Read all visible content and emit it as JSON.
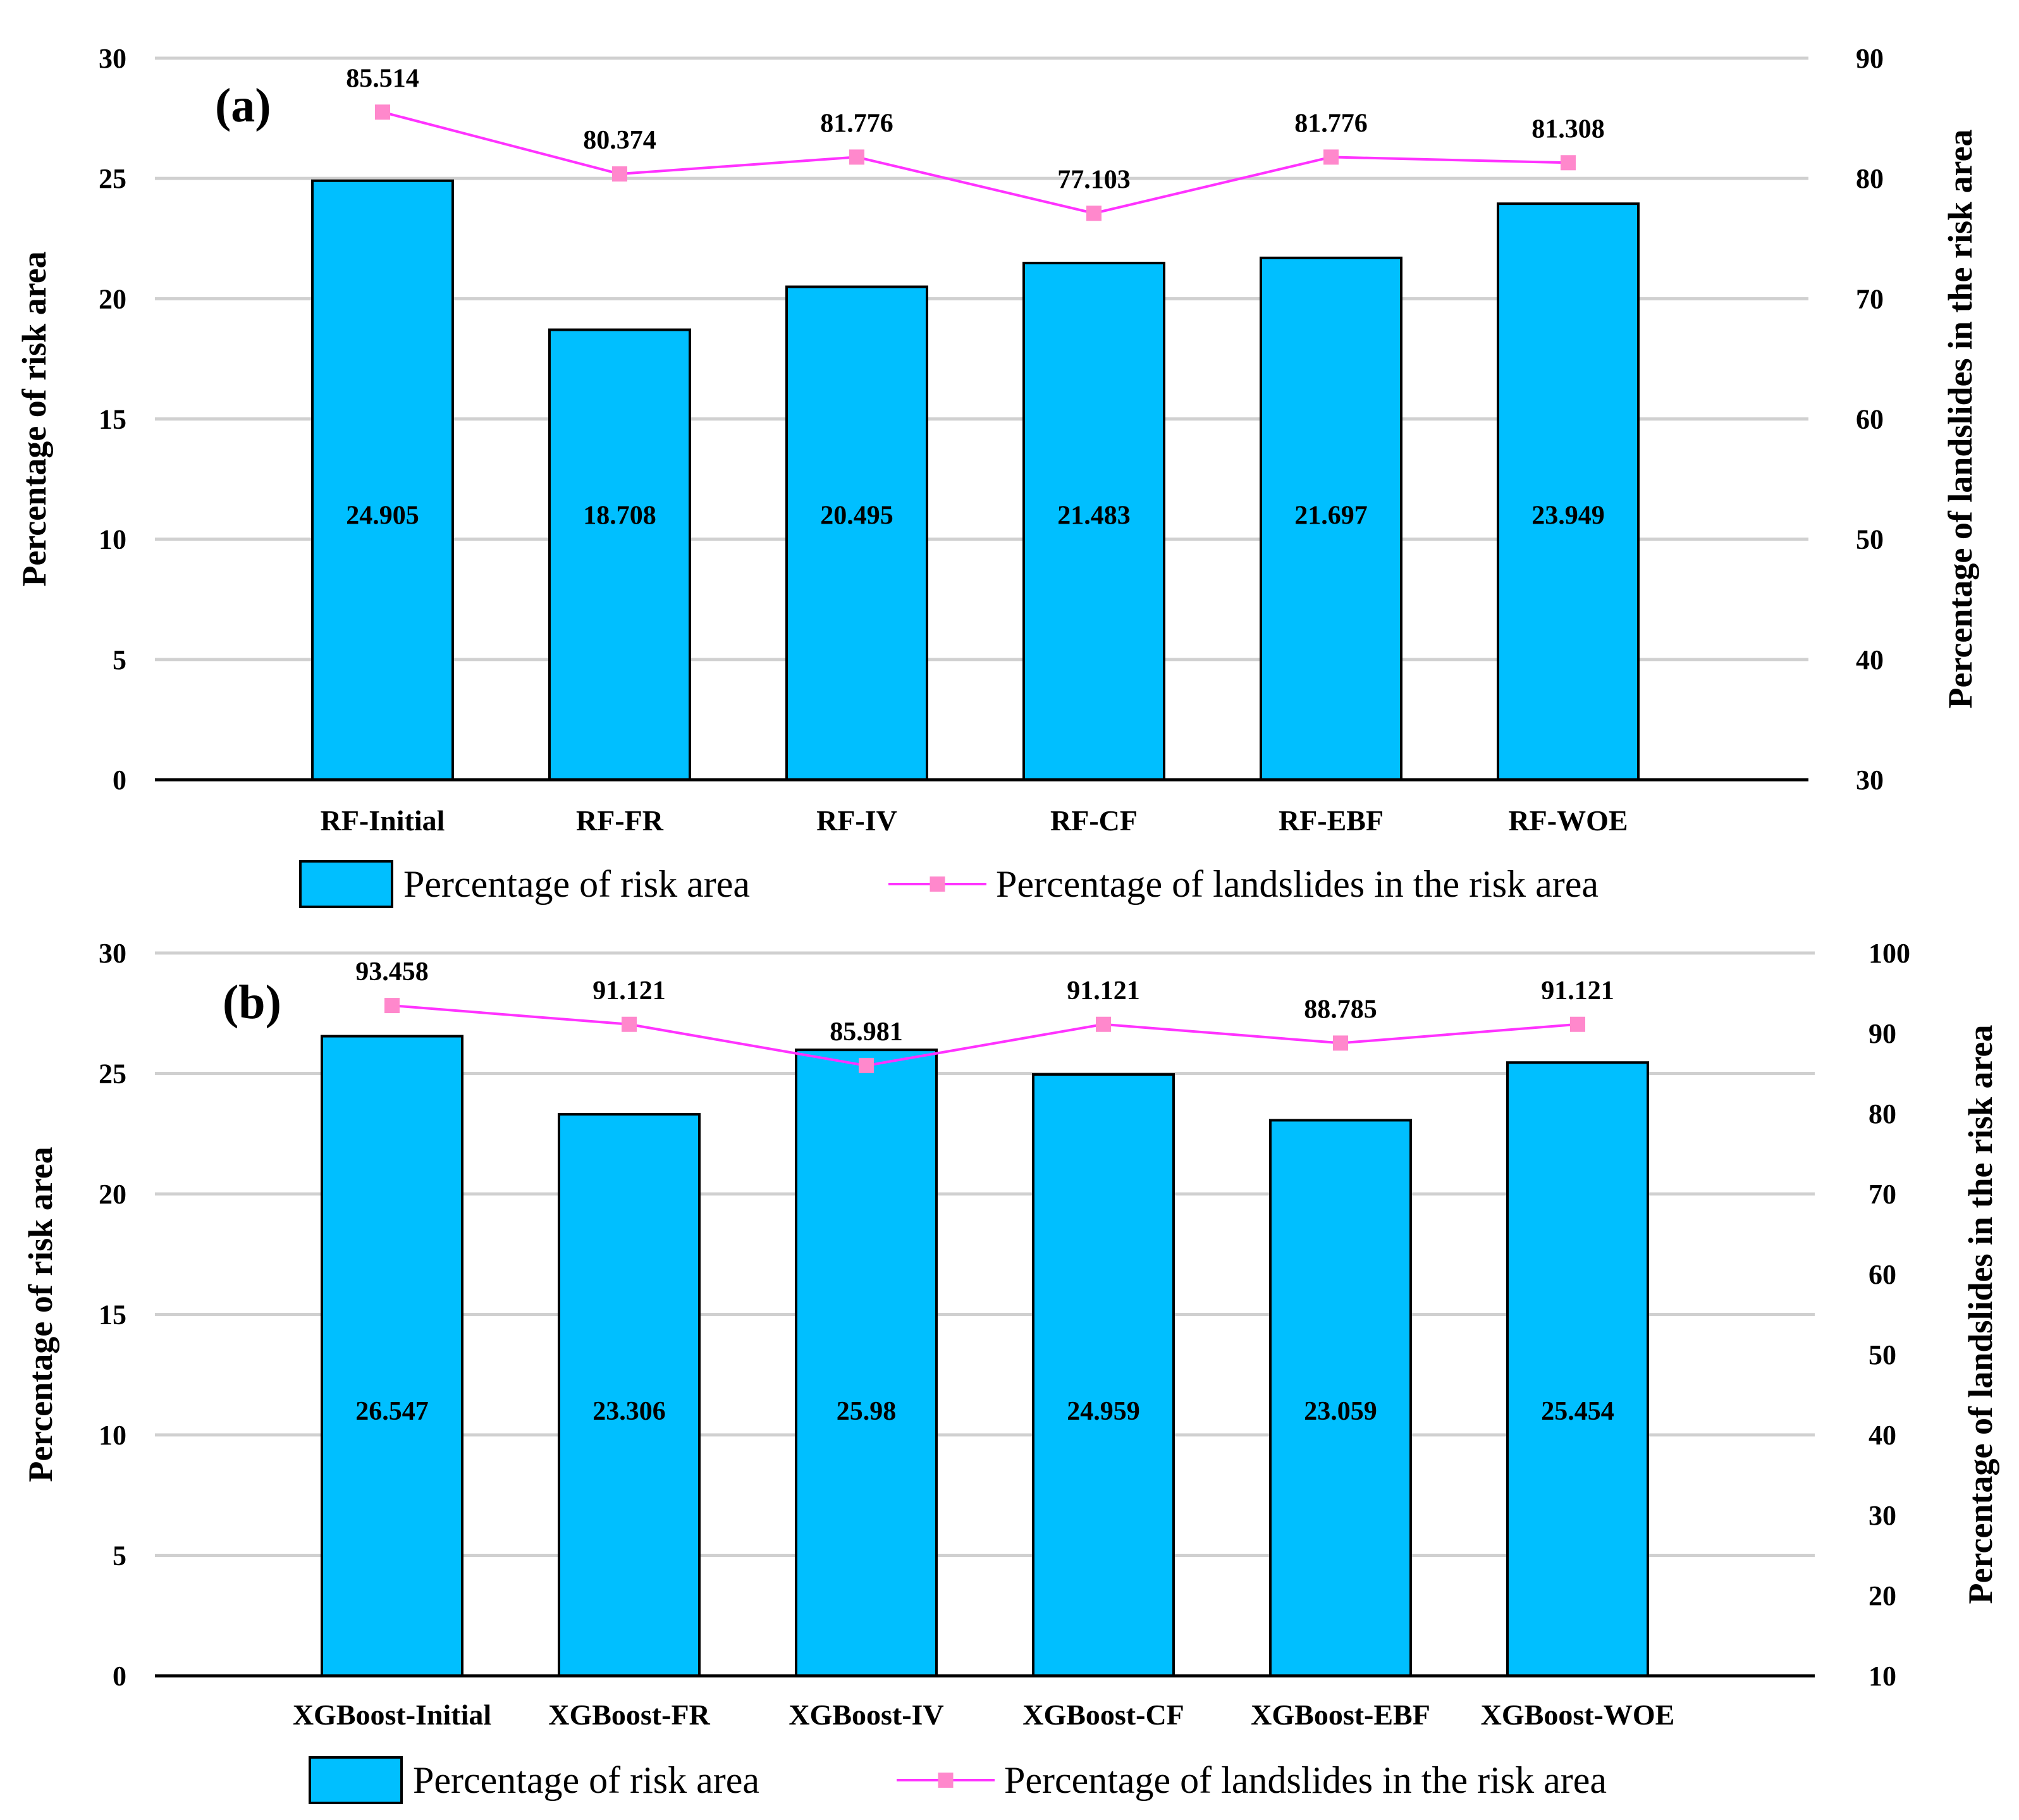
{
  "colors": {
    "bar": "#00BFFF",
    "bar_stroke": "#000000",
    "line": "#FF33FF",
    "marker": "#FF88CC",
    "grid": "#D0D0D0",
    "axis": "#000000"
  },
  "chart_data": [
    {
      "type": "bar",
      "panel_label": "(a)",
      "categories": [
        "RF-Initial",
        "RF-FR",
        "RF-IV",
        "RF-CF",
        "RF-EBF",
        "RF-WOE"
      ],
      "series": [
        {
          "name": "Percentage of risk area",
          "type": "bar",
          "axis": "left",
          "values": [
            24.905,
            18.708,
            20.495,
            21.483,
            21.697,
            23.949
          ],
          "labels": [
            "24.905",
            "18.708",
            "20.495",
            "21.483",
            "21.697",
            "23.949"
          ]
        },
        {
          "name": "Percentage of landslides in the risk area",
          "type": "line",
          "axis": "right",
          "values": [
            85.514,
            80.374,
            81.776,
            77.103,
            81.776,
            81.308
          ],
          "labels": [
            "85.514",
            "80.374",
            "81.776",
            "77.103",
            "81.776",
            "81.308"
          ]
        }
      ],
      "ylabel": "Percentage of risk area",
      "y2label": "Percentage of landslides in the risk area",
      "ylim": [
        0,
        30
      ],
      "y2lim": [
        30,
        90
      ],
      "yticks": [
        "0",
        "5",
        "10",
        "15",
        "20",
        "25",
        "30"
      ],
      "y2ticks": [
        "30",
        "40",
        "50",
        "60",
        "70",
        "80",
        "90"
      ],
      "grid": true,
      "legend": "bottom"
    },
    {
      "type": "bar",
      "panel_label": "(b)",
      "categories": [
        "XGBoost-Initial",
        "XGBoost-FR",
        "XGBoost-IV",
        "XGBoost-CF",
        "XGBoost-EBF",
        "XGBoost-WOE"
      ],
      "series": [
        {
          "name": "Percentage of risk area",
          "type": "bar",
          "axis": "left",
          "values": [
            26.547,
            23.306,
            25.98,
            24.959,
            23.059,
            25.454
          ],
          "labels": [
            "26.547",
            "23.306",
            "25.98",
            "24.959",
            "23.059",
            "25.454"
          ]
        },
        {
          "name": "Percentage of landslides in the risk area",
          "type": "line",
          "axis": "right",
          "values": [
            93.458,
            91.121,
            85.981,
            91.121,
            88.785,
            91.121
          ],
          "labels": [
            "93.458",
            "91.121",
            "85.981",
            "91.121",
            "88.785",
            "91.121"
          ]
        }
      ],
      "ylabel": "Percentage of risk area",
      "y2label": "Percentage of landslides in the risk area",
      "ylim": [
        0,
        30
      ],
      "y2lim": [
        10,
        100
      ],
      "yticks": [
        "0",
        "5",
        "10",
        "15",
        "20",
        "25",
        "30"
      ],
      "y2ticks": [
        "10",
        "20",
        "30",
        "40",
        "50",
        "60",
        "70",
        "80",
        "90",
        "100"
      ],
      "grid": true,
      "legend": "bottom"
    }
  ]
}
